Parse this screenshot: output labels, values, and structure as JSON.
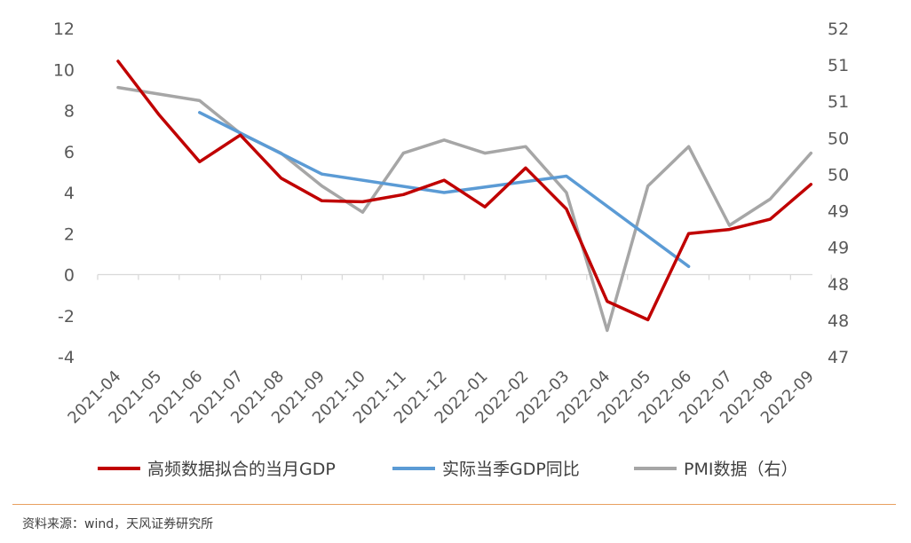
{
  "chart_data": {
    "type": "line",
    "categories": [
      "2021-04",
      "2021-05",
      "2021-06",
      "2021-07",
      "2021-08",
      "2021-09",
      "2021-10",
      "2021-11",
      "2021-12",
      "2022-01",
      "2022-02",
      "2022-03",
      "2022-04",
      "2022-05",
      "2022-06",
      "2022-07",
      "2022-08",
      "2022-09"
    ],
    "y_left": {
      "min": -4,
      "max": 12,
      "ticks": [
        "12",
        "10",
        "8",
        "6",
        "4",
        "2",
        "0",
        "-2",
        "-4"
      ]
    },
    "y_right": {
      "min": 47,
      "max": 52,
      "ticks": [
        "52",
        "51",
        "51",
        "50",
        "50",
        "49",
        "49",
        "48",
        "48",
        "47"
      ]
    },
    "series": [
      {
        "name": "高频数据拟合的当月GDP",
        "axis": "left",
        "color": "#c00000",
        "values": [
          10.4,
          7.8,
          5.5,
          6.8,
          4.7,
          3.6,
          3.55,
          3.9,
          4.6,
          3.3,
          5.2,
          3.2,
          -1.3,
          -2.2,
          2.0,
          2.2,
          2.7,
          4.4
        ]
      },
      {
        "name": "实际当季GDP同比",
        "axis": "left",
        "color": "#5b9bd5",
        "values": [
          null,
          null,
          7.9,
          null,
          null,
          4.9,
          null,
          null,
          4.0,
          null,
          null,
          4.8,
          null,
          null,
          0.4,
          null,
          null,
          null
        ]
      },
      {
        "name": "PMI数据（右）",
        "axis": "right",
        "color": "#a6a6a6",
        "values": [
          51.1,
          51.0,
          50.9,
          50.4,
          50.1,
          49.6,
          49.2,
          50.1,
          50.3,
          50.1,
          50.2,
          49.5,
          47.4,
          49.6,
          50.2,
          49.0,
          49.4,
          50.1
        ]
      }
    ]
  },
  "footer": {
    "source": "资料来源：wind，天风证券研究所"
  }
}
